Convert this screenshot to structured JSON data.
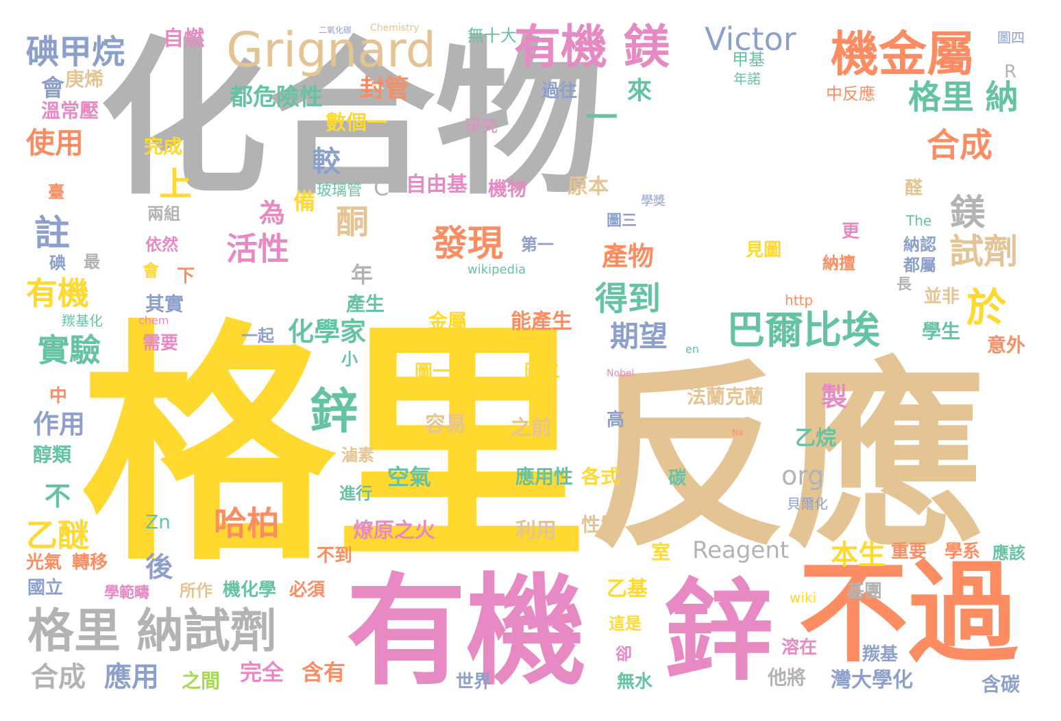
{
  "colors": {
    "gray": "#b3b3b3",
    "yellow": "#ffd92f",
    "tan": "#e5c494",
    "pink": "#e78ac3",
    "orange": "#fc8d62",
    "green": "#66c2a5",
    "blue": "#8da0cb",
    "lime": "#a6d854"
  },
  "words": [
    {
      "text": "化合物"
    },
    {
      "text": "格里"
    },
    {
      "text": "反應"
    },
    {
      "text": "有機"
    },
    {
      "text": "鋅"
    },
    {
      "text": "不過"
    },
    {
      "text": "Grignard"
    },
    {
      "text": "有機 鎂"
    },
    {
      "text": "機金屬"
    },
    {
      "text": "格里 納試劑"
    },
    {
      "text": "巴爾比埃"
    },
    {
      "text": "Victor"
    },
    {
      "text": "碘甲烷"
    },
    {
      "text": "格里 納"
    },
    {
      "text": "合成"
    },
    {
      "text": "鎂"
    },
    {
      "text": "試劑"
    },
    {
      "text": "於"
    },
    {
      "text": "得到"
    },
    {
      "text": "期望"
    },
    {
      "text": "鋅"
    },
    {
      "text": "發現"
    },
    {
      "text": "哈柏"
    },
    {
      "text": "酮"
    },
    {
      "text": "活性"
    },
    {
      "text": "註"
    },
    {
      "text": "有機"
    },
    {
      "text": "實驗"
    },
    {
      "text": "乙醚"
    },
    {
      "text": "化學家"
    },
    {
      "text": "較"
    },
    {
      "text": "上"
    },
    {
      "text": "為"
    },
    {
      "text": "封管"
    },
    {
      "text": "都危險性"
    },
    {
      "text": "數個一"
    },
    {
      "text": "自燃"
    },
    {
      "text": "使用"
    },
    {
      "text": "溫常壓"
    },
    {
      "text": "庚烯"
    },
    {
      "text": "會"
    },
    {
      "text": "完成"
    },
    {
      "text": "一"
    },
    {
      "text": "來"
    },
    {
      "text": "過往"
    },
    {
      "text": "研究"
    },
    {
      "text": "無十大"
    },
    {
      "text": "甲基"
    },
    {
      "text": "年諾"
    },
    {
      "text": "中反應"
    },
    {
      "text": "圖四"
    },
    {
      "text": "R"
    },
    {
      "text": "臺"
    },
    {
      "text": "兩組"
    },
    {
      "text": "依然"
    },
    {
      "text": "會"
    },
    {
      "text": "最"
    },
    {
      "text": "碘"
    },
    {
      "text": "下"
    },
    {
      "text": "其實"
    },
    {
      "text": "羰基化"
    },
    {
      "text": "需要"
    },
    {
      "text": "備"
    },
    {
      "text": "玻璃管"
    },
    {
      "text": "C"
    },
    {
      "text": "自由基"
    },
    {
      "text": "機物"
    },
    {
      "text": "原本"
    },
    {
      "text": "第一"
    },
    {
      "text": "圖三"
    },
    {
      "text": "產物"
    },
    {
      "text": "學獎"
    },
    {
      "text": "醛"
    },
    {
      "text": "The"
    },
    {
      "text": "更"
    },
    {
      "text": "納認"
    },
    {
      "text": "都屬"
    },
    {
      "text": "納擅"
    },
    {
      "text": "見圖"
    },
    {
      "text": "wikipedia"
    },
    {
      "text": "年"
    },
    {
      "text": "產生"
    },
    {
      "text": "金屬"
    },
    {
      "text": "能產生"
    },
    {
      "text": "長"
    },
    {
      "text": "並非"
    },
    {
      "text": "學生"
    },
    {
      "text": "意外"
    },
    {
      "text": "http"
    },
    {
      "text": "一起"
    },
    {
      "text": "小"
    },
    {
      "text": "圖一"
    },
    {
      "text": "圖二"
    },
    {
      "text": "作用"
    },
    {
      "text": "醇類"
    },
    {
      "text": "中"
    },
    {
      "text": "不"
    },
    {
      "text": "容易"
    },
    {
      "text": "之前"
    },
    {
      "text": "法蘭克蘭"
    },
    {
      "text": "製"
    },
    {
      "text": "高"
    },
    {
      "text": "乙烷"
    },
    {
      "text": "org"
    },
    {
      "text": "滷素"
    },
    {
      "text": "空氣"
    },
    {
      "text": "進行"
    },
    {
      "text": "應用性"
    },
    {
      "text": "各式"
    },
    {
      "text": "碳"
    },
    {
      "text": "燎原之火"
    },
    {
      "text": "利用"
    },
    {
      "text": "性質"
    },
    {
      "text": "Zn"
    },
    {
      "text": "後"
    },
    {
      "text": "Reagent"
    },
    {
      "text": "本生"
    },
    {
      "text": "重要"
    },
    {
      "text": "學系"
    },
    {
      "text": "應該"
    },
    {
      "text": "光氣"
    },
    {
      "text": "轉移"
    },
    {
      "text": "國立"
    },
    {
      "text": "學範疇"
    },
    {
      "text": "所作"
    },
    {
      "text": "機化學"
    },
    {
      "text": "必須"
    },
    {
      "text": "不到"
    },
    {
      "text": "室"
    },
    {
      "text": "乙基"
    },
    {
      "text": "這是"
    },
    {
      "text": "卻"
    },
    {
      "text": "基團"
    },
    {
      "text": "wiki"
    },
    {
      "text": "溶在"
    },
    {
      "text": "羰基"
    },
    {
      "text": "合成"
    },
    {
      "text": "應用"
    },
    {
      "text": "之間"
    },
    {
      "text": "完全"
    },
    {
      "text": "含有"
    },
    {
      "text": "世界"
    },
    {
      "text": "無水"
    },
    {
      "text": "他將"
    },
    {
      "text": "灣大學化"
    },
    {
      "text": "含碳"
    },
    {
      "text": "chem"
    },
    {
      "text": "en"
    },
    {
      "text": "Nobel"
    },
    {
      "text": "Chemistry"
    },
    {
      "text": "二氧化碳"
    },
    {
      "text": "貝爾化"
    },
    {
      "text": "Na"
    }
  ]
}
